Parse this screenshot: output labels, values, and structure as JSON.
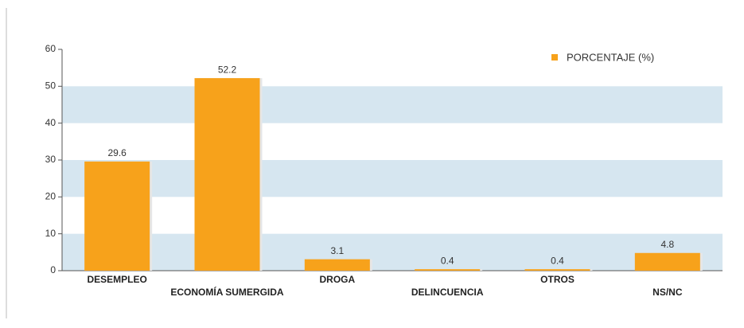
{
  "chart_data": {
    "type": "bar",
    "categories": [
      "DESEMPLEO",
      "ECONOMÍA SUMERGIDA",
      "DROGA",
      "DELINCUENCIA",
      "OTROS",
      "NS/NC"
    ],
    "series": [
      {
        "name": "PORCENTAJE (%)",
        "color": "#f7a21b",
        "values": [
          29.6,
          52.2,
          3.1,
          0.4,
          0.4,
          4.8
        ]
      }
    ],
    "ylim": [
      0,
      60
    ],
    "yticks": [
      0,
      10,
      20,
      30,
      40,
      50,
      60
    ],
    "legend": "top-right",
    "band_color": "#d6e6f0"
  }
}
